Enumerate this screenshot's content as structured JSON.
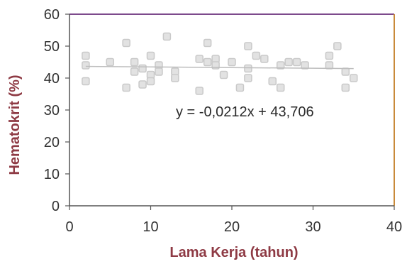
{
  "chart_data": {
    "type": "scatter",
    "title": "",
    "xlabel": "Lama Kerja (tahun)",
    "ylabel": "Hematokrit (%)",
    "xlim": [
      0,
      40
    ],
    "ylim": [
      0,
      60
    ],
    "x_ticks": [
      "0",
      "10",
      "20",
      "30",
      "40"
    ],
    "y_ticks": [
      "0",
      "10",
      "20",
      "30",
      "40",
      "50",
      "60"
    ],
    "grid": false,
    "equation": "y = -0,0212x + 43,706",
    "trendline": {
      "slope": -0.0212,
      "intercept": 43.706,
      "x_range": [
        2,
        35
      ]
    },
    "colors": {
      "axis_title": "#8e3a44",
      "marker": "#c9c9c9",
      "frame_top": "#7d4a8c",
      "frame_right": "#c98a3a",
      "axis": "#555555"
    },
    "series": [
      {
        "points": [
          [
            2,
            47
          ],
          [
            2,
            44
          ],
          [
            2,
            39
          ],
          [
            5,
            45
          ],
          [
            7,
            51
          ],
          [
            7,
            37
          ],
          [
            8,
            45
          ],
          [
            8,
            42
          ],
          [
            9,
            43
          ],
          [
            9,
            38
          ],
          [
            10,
            47
          ],
          [
            10,
            41
          ],
          [
            10,
            39
          ],
          [
            11,
            44
          ],
          [
            11,
            42
          ],
          [
            12,
            53
          ],
          [
            13,
            42
          ],
          [
            13,
            40
          ],
          [
            16,
            46
          ],
          [
            16,
            36
          ],
          [
            17,
            51
          ],
          [
            17,
            45
          ],
          [
            18,
            46
          ],
          [
            18,
            44
          ],
          [
            19,
            41
          ],
          [
            20,
            45
          ],
          [
            21,
            37
          ],
          [
            22,
            50
          ],
          [
            22,
            43
          ],
          [
            22,
            40
          ],
          [
            23,
            47
          ],
          [
            24,
            46
          ],
          [
            25,
            39
          ],
          [
            26,
            44
          ],
          [
            26,
            37
          ],
          [
            27,
            45
          ],
          [
            28,
            45
          ],
          [
            29,
            44
          ],
          [
            32,
            47
          ],
          [
            32,
            44
          ],
          [
            33,
            50
          ],
          [
            34,
            42
          ],
          [
            34,
            37
          ],
          [
            35,
            40
          ]
        ]
      }
    ]
  }
}
